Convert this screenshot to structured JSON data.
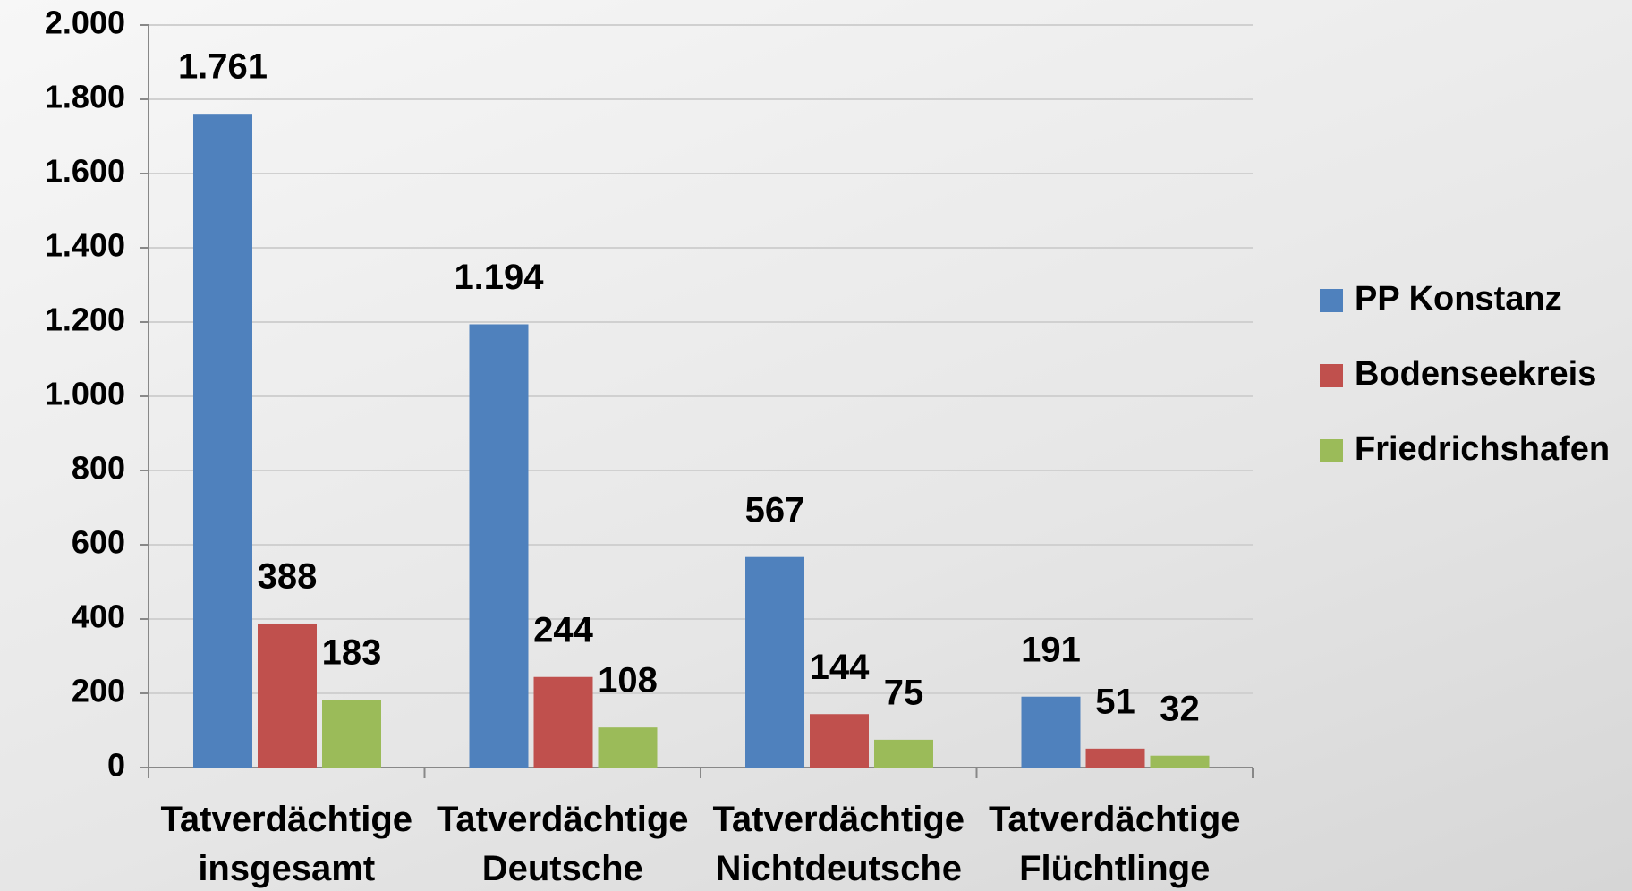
{
  "chart_data": {
    "type": "bar",
    "categories": [
      "Tatverdächtige insgesamt",
      "Tatverdächtige Deutsche",
      "Tatverdächtige Nichtdeutsche",
      "Tatverdächtige Flüchtlinge"
    ],
    "series": [
      {
        "name": "PP Konstanz",
        "color": "#4f81bd",
        "values": [
          1761,
          1194,
          567,
          191
        ],
        "value_labels": [
          "1.761",
          "1.194",
          "567",
          "191"
        ]
      },
      {
        "name": "Bodenseekreis",
        "color": "#c0504d",
        "values": [
          388,
          244,
          144,
          51
        ],
        "value_labels": [
          "388",
          "244",
          "144",
          "51"
        ]
      },
      {
        "name": "Friedrichshafen",
        "color": "#9bbb59",
        "values": [
          183,
          108,
          75,
          32
        ],
        "value_labels": [
          "183",
          "108",
          "75",
          "32"
        ]
      }
    ],
    "ylim": [
      0,
      2000
    ],
    "yticks": [
      0,
      200,
      400,
      600,
      800,
      {
        "value": 1000,
        "label": "1.000"
      },
      {
        "value": 1200,
        "label": "1.200"
      },
      {
        "value": 1400,
        "label": "1.400"
      },
      {
        "value": 1600,
        "label": "1.600"
      },
      {
        "value": 1800,
        "label": "1.800"
      },
      {
        "value": 2000,
        "label": "2.000"
      }
    ],
    "grid": true,
    "legend": "right"
  }
}
